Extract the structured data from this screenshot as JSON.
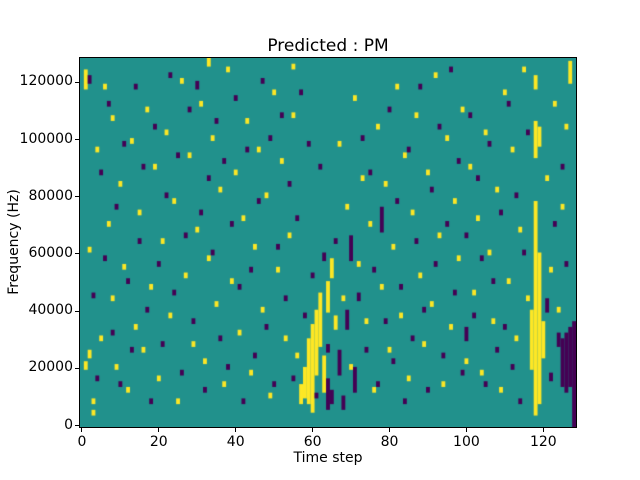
{
  "title": "Predicted : PM",
  "chart_data": {
    "type": "heatmap",
    "title": "Predicted : PM",
    "xlabel": "Time step",
    "ylabel": "Frequency (Hz)",
    "x_range": [
      0,
      129
    ],
    "y_range_hz": [
      0,
      129000
    ],
    "x_ticks": [
      0,
      20,
      40,
      60,
      80,
      100,
      120
    ],
    "y_ticks": [
      0,
      20000,
      40000,
      60000,
      80000,
      100000,
      120000
    ],
    "grid": false,
    "legend": "none",
    "colors": {
      "background": "#21918c",
      "high": "#fde725",
      "low": "#440154",
      "spine": "#000000"
    },
    "cell_grid": {
      "n_time": 129,
      "n_freq": 129,
      "freq_bin_hz": 1000
    },
    "yellow_runs": [
      [
        1,
        118,
        124
      ],
      [
        1,
        20,
        22
      ],
      [
        2,
        24,
        26
      ],
      [
        2,
        61,
        62
      ],
      [
        3,
        4,
        5
      ],
      [
        3,
        8,
        9
      ],
      [
        4,
        96,
        97
      ],
      [
        5,
        30,
        31
      ],
      [
        6,
        118,
        119
      ],
      [
        7,
        70,
        71
      ],
      [
        8,
        44,
        45
      ],
      [
        8,
        107,
        108
      ],
      [
        9,
        20,
        21
      ],
      [
        10,
        84,
        85
      ],
      [
        11,
        55,
        56
      ],
      [
        12,
        12,
        13
      ],
      [
        13,
        99,
        100
      ],
      [
        14,
        34,
        35
      ],
      [
        15,
        74,
        75
      ],
      [
        16,
        26,
        27
      ],
      [
        17,
        110,
        111
      ],
      [
        18,
        48,
        49
      ],
      [
        19,
        90,
        91
      ],
      [
        20,
        16,
        17
      ],
      [
        21,
        64,
        65
      ],
      [
        22,
        102,
        103
      ],
      [
        23,
        38,
        39
      ],
      [
        24,
        78,
        79
      ],
      [
        25,
        8,
        9
      ],
      [
        26,
        120,
        121
      ],
      [
        27,
        52,
        53
      ],
      [
        28,
        94,
        95
      ],
      [
        29,
        28,
        29
      ],
      [
        30,
        68,
        69
      ],
      [
        31,
        112,
        113
      ],
      [
        32,
        22,
        23
      ],
      [
        33,
        58,
        59
      ],
      [
        33,
        126,
        128
      ],
      [
        34,
        100,
        101
      ],
      [
        35,
        42,
        43
      ],
      [
        36,
        82,
        83
      ],
      [
        37,
        14,
        15
      ],
      [
        38,
        124,
        125
      ],
      [
        39,
        50,
        51
      ],
      [
        40,
        88,
        89
      ],
      [
        41,
        32,
        33
      ],
      [
        42,
        72,
        73
      ],
      [
        43,
        106,
        107
      ],
      [
        44,
        18,
        19
      ],
      [
        45,
        62,
        63
      ],
      [
        46,
        96,
        97
      ],
      [
        47,
        40,
        41
      ],
      [
        48,
        80,
        81
      ],
      [
        49,
        10,
        11
      ],
      [
        50,
        116,
        117
      ],
      [
        51,
        54,
        55
      ],
      [
        52,
        92,
        93
      ],
      [
        53,
        30,
        31
      ],
      [
        54,
        66,
        67
      ],
      [
        55,
        108,
        109
      ],
      [
        55,
        125,
        126
      ],
      [
        56,
        24,
        25
      ],
      [
        57,
        8,
        14
      ],
      [
        58,
        10,
        20
      ],
      [
        59,
        8,
        30
      ],
      [
        60,
        5,
        35
      ],
      [
        61,
        18,
        40
      ],
      [
        62,
        28,
        46
      ],
      [
        63,
        12,
        24
      ],
      [
        64,
        40,
        50
      ],
      [
        65,
        52,
        58
      ],
      [
        66,
        34,
        38
      ],
      [
        67,
        98,
        99
      ],
      [
        68,
        44,
        45
      ],
      [
        69,
        76,
        77
      ],
      [
        70,
        20,
        21
      ],
      [
        71,
        114,
        115
      ],
      [
        72,
        56,
        57
      ],
      [
        73,
        86,
        87
      ],
      [
        74,
        36,
        37
      ],
      [
        75,
        70,
        71
      ],
      [
        76,
        12,
        13
      ],
      [
        77,
        104,
        105
      ],
      [
        78,
        48,
        49
      ],
      [
        79,
        84,
        85
      ],
      [
        80,
        26,
        27
      ],
      [
        81,
        62,
        63
      ],
      [
        82,
        118,
        119
      ],
      [
        83,
        38,
        39
      ],
      [
        84,
        94,
        95
      ],
      [
        85,
        16,
        17
      ],
      [
        86,
        74,
        75
      ],
      [
        87,
        108,
        109
      ],
      [
        88,
        52,
        53
      ],
      [
        89,
        28,
        29
      ],
      [
        90,
        88,
        89
      ],
      [
        91,
        42,
        43
      ],
      [
        92,
        122,
        123
      ],
      [
        93,
        66,
        67
      ],
      [
        94,
        14,
        15
      ],
      [
        95,
        100,
        101
      ],
      [
        96,
        34,
        35
      ],
      [
        97,
        78,
        79
      ],
      [
        98,
        58,
        59
      ],
      [
        99,
        110,
        111
      ],
      [
        100,
        22,
        23
      ],
      [
        101,
        90,
        91
      ],
      [
        102,
        46,
        47
      ],
      [
        103,
        72,
        73
      ],
      [
        104,
        18,
        19
      ],
      [
        105,
        102,
        103
      ],
      [
        106,
        60,
        61
      ],
      [
        107,
        36,
        37
      ],
      [
        108,
        82,
        83
      ],
      [
        109,
        12,
        13
      ],
      [
        110,
        116,
        117
      ],
      [
        111,
        50,
        51
      ],
      [
        112,
        96,
        97
      ],
      [
        113,
        30,
        31
      ],
      [
        114,
        68,
        69
      ],
      [
        115,
        124,
        125
      ],
      [
        116,
        44,
        45
      ],
      [
        117,
        20,
        40
      ],
      [
        118,
        4,
        78
      ],
      [
        118,
        94,
        106
      ],
      [
        118,
        118,
        122
      ],
      [
        119,
        8,
        60
      ],
      [
        119,
        98,
        104
      ],
      [
        120,
        24,
        36
      ],
      [
        121,
        86,
        87
      ],
      [
        122,
        54,
        55
      ],
      [
        123,
        112,
        113
      ],
      [
        124,
        40,
        41
      ],
      [
        125,
        76,
        77
      ],
      [
        126,
        104,
        105
      ],
      [
        127,
        120,
        127
      ]
    ],
    "purple_runs": [
      [
        2,
        120,
        122
      ],
      [
        3,
        45,
        46
      ],
      [
        4,
        16,
        17
      ],
      [
        5,
        88,
        89
      ],
      [
        6,
        58,
        59
      ],
      [
        7,
        112,
        113
      ],
      [
        8,
        32,
        33
      ],
      [
        9,
        76,
        77
      ],
      [
        10,
        14,
        15
      ],
      [
        11,
        98,
        99
      ],
      [
        12,
        50,
        51
      ],
      [
        13,
        26,
        27
      ],
      [
        14,
        118,
        119
      ],
      [
        15,
        64,
        65
      ],
      [
        16,
        90,
        91
      ],
      [
        17,
        40,
        41
      ],
      [
        18,
        8,
        9
      ],
      [
        19,
        104,
        105
      ],
      [
        20,
        56,
        57
      ],
      [
        21,
        28,
        29
      ],
      [
        22,
        80,
        81
      ],
      [
        23,
        122,
        123
      ],
      [
        24,
        46,
        47
      ],
      [
        25,
        94,
        95
      ],
      [
        26,
        18,
        19
      ],
      [
        27,
        66,
        67
      ],
      [
        28,
        110,
        111
      ],
      [
        29,
        36,
        37
      ],
      [
        30,
        118,
        120
      ],
      [
        31,
        74,
        75
      ],
      [
        32,
        12,
        13
      ],
      [
        33,
        86,
        87
      ],
      [
        34,
        60,
        61
      ],
      [
        35,
        106,
        107
      ],
      [
        36,
        30,
        31
      ],
      [
        37,
        92,
        93
      ],
      [
        38,
        20,
        21
      ],
      [
        39,
        70,
        71
      ],
      [
        40,
        114,
        115
      ],
      [
        41,
        48,
        49
      ],
      [
        42,
        8,
        9
      ],
      [
        43,
        96,
        97
      ],
      [
        44,
        54,
        55
      ],
      [
        45,
        24,
        25
      ],
      [
        46,
        78,
        79
      ],
      [
        47,
        120,
        121
      ],
      [
        48,
        34,
        35
      ],
      [
        49,
        100,
        101
      ],
      [
        50,
        14,
        15
      ],
      [
        51,
        62,
        63
      ],
      [
        52,
        108,
        109
      ],
      [
        53,
        44,
        45
      ],
      [
        54,
        84,
        85
      ],
      [
        55,
        16,
        17
      ],
      [
        56,
        72,
        73
      ],
      [
        57,
        116,
        117
      ],
      [
        58,
        38,
        39
      ],
      [
        59,
        98,
        99
      ],
      [
        60,
        52,
        53
      ],
      [
        61,
        10,
        11
      ],
      [
        62,
        90,
        91
      ],
      [
        63,
        58,
        60
      ],
      [
        64,
        6,
        16
      ],
      [
        64,
        26,
        28
      ],
      [
        65,
        8,
        12
      ],
      [
        66,
        64,
        65
      ],
      [
        67,
        18,
        26
      ],
      [
        68,
        6,
        10
      ],
      [
        69,
        34,
        40
      ],
      [
        70,
        58,
        66
      ],
      [
        71,
        12,
        20
      ],
      [
        72,
        44,
        46
      ],
      [
        73,
        100,
        101
      ],
      [
        74,
        26,
        27
      ],
      [
        75,
        88,
        89
      ],
      [
        76,
        54,
        55
      ],
      [
        77,
        14,
        15
      ],
      [
        78,
        68,
        76
      ],
      [
        79,
        36,
        37
      ],
      [
        80,
        110,
        111
      ],
      [
        81,
        22,
        23
      ],
      [
        82,
        78,
        79
      ],
      [
        83,
        48,
        49
      ],
      [
        84,
        8,
        9
      ],
      [
        85,
        96,
        97
      ],
      [
        86,
        30,
        31
      ],
      [
        87,
        64,
        65
      ],
      [
        88,
        118,
        119
      ],
      [
        89,
        40,
        41
      ],
      [
        90,
        12,
        13
      ],
      [
        91,
        82,
        83
      ],
      [
        92,
        56,
        57
      ],
      [
        93,
        104,
        105
      ],
      [
        94,
        24,
        25
      ],
      [
        95,
        70,
        71
      ],
      [
        96,
        124,
        125
      ],
      [
        97,
        46,
        47
      ],
      [
        98,
        92,
        93
      ],
      [
        99,
        18,
        19
      ],
      [
        100,
        66,
        67
      ],
      [
        100,
        30,
        34
      ],
      [
        101,
        108,
        109
      ],
      [
        102,
        38,
        39
      ],
      [
        103,
        86,
        87
      ],
      [
        104,
        58,
        59
      ],
      [
        105,
        14,
        15
      ],
      [
        106,
        98,
        99
      ],
      [
        107,
        50,
        51
      ],
      [
        108,
        26,
        27
      ],
      [
        109,
        74,
        75
      ],
      [
        110,
        34,
        35
      ],
      [
        111,
        112,
        113
      ],
      [
        112,
        20,
        21
      ],
      [
        113,
        80,
        81
      ],
      [
        114,
        8,
        9
      ],
      [
        115,
        60,
        61
      ],
      [
        116,
        102,
        103
      ],
      [
        121,
        40,
        44
      ],
      [
        122,
        16,
        18
      ],
      [
        123,
        70,
        71
      ],
      [
        124,
        28,
        32
      ],
      [
        125,
        14,
        30
      ],
      [
        125,
        90,
        91
      ],
      [
        126,
        12,
        32
      ],
      [
        126,
        56,
        57
      ],
      [
        127,
        14,
        34
      ],
      [
        128,
        0,
        36
      ]
    ]
  }
}
